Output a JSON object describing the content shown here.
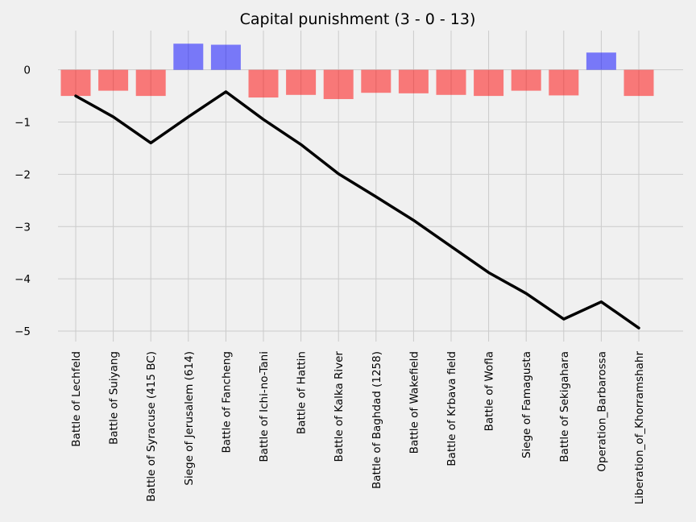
{
  "chart_data": {
    "type": "bar",
    "title": "Capital punishment (3 - 0 - 13)",
    "xlabel": "",
    "ylabel": "",
    "ylim": [
      -5.2,
      0.75
    ],
    "grid": true,
    "y_ticks": [
      0,
      -1,
      -2,
      -3,
      -4,
      -5
    ],
    "y_tick_labels": [
      "0",
      "−1",
      "−2",
      "−3",
      "−4",
      "−5"
    ],
    "categories": [
      "Battle of Lechfeld",
      "Battle of Suiyang",
      "Battle of Syracuse (415 BC)",
      "Siege of Jerusalem (614)",
      "Battle of Fancheng",
      "Battle of Ichi-no-Tani",
      "Battle of Hattin",
      "Battle of Kalka River",
      "Battle of Baghdad (1258)",
      "Battle of Wakefield",
      "Battle of Krbava field",
      "Battle of Wofla",
      "Siege of Famagusta",
      "Battle of Sekigahara",
      "Operation_Barbarossa",
      "Liberation_of_Khorramshahr"
    ],
    "series": [
      {
        "kind": "bar",
        "values": [
          -0.5,
          -0.4,
          -0.5,
          0.5,
          0.48,
          -0.53,
          -0.48,
          -0.56,
          -0.44,
          -0.45,
          -0.48,
          -0.5,
          -0.4,
          -0.49,
          0.33,
          -0.5
        ],
        "positive_color": "#0000ff",
        "negative_color": "#ff0000",
        "opacity": 0.5
      },
      {
        "kind": "line",
        "values": [
          -0.5,
          -0.9,
          -1.4,
          -0.9,
          -0.42,
          -0.95,
          -1.43,
          -1.99,
          -2.43,
          -2.88,
          -3.38,
          -3.88,
          -4.28,
          -4.77,
          -4.44,
          -4.94
        ],
        "color": "#000000"
      }
    ]
  }
}
